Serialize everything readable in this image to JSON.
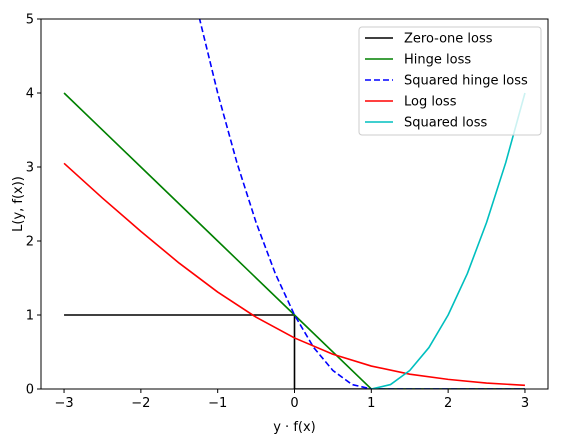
{
  "chart_data": {
    "type": "line",
    "xlabel": "y · f(x)",
    "ylabel": "L(y, f(x))",
    "xlim": [
      -3.3,
      3.3
    ],
    "ylim": [
      0,
      5
    ],
    "xticks": [
      -3,
      -2,
      -1,
      0,
      1,
      2,
      3
    ],
    "yticks": [
      0,
      1,
      2,
      3,
      4,
      5
    ],
    "xtick_labels": [
      "−3",
      "−2",
      "−1",
      "0",
      "1",
      "2",
      "3"
    ],
    "ytick_labels": [
      "0",
      "1",
      "2",
      "3",
      "4",
      "5"
    ],
    "grid": false,
    "legend_position": "top-right",
    "series": [
      {
        "name": "Zero-one loss",
        "color": "#000000",
        "style": "solid",
        "x": [
          -3,
          0,
          0,
          3
        ],
        "y": [
          1,
          1,
          0,
          0
        ]
      },
      {
        "name": "Hinge loss",
        "color": "#008000",
        "style": "solid",
        "x": [
          -3,
          -2,
          -1,
          0,
          1,
          3
        ],
        "y": [
          4,
          3,
          2,
          1,
          0,
          0
        ]
      },
      {
        "name": "Squared hinge loss",
        "color": "#0000ff",
        "style": "dashed",
        "x": [
          -1.24,
          -1,
          -0.75,
          -0.5,
          -0.25,
          0,
          0.25,
          0.5,
          0.75,
          1,
          3
        ],
        "y": [
          5.02,
          4,
          3.06,
          2.25,
          1.56,
          1,
          0.56,
          0.25,
          0.06,
          0,
          0
        ]
      },
      {
        "name": "Log loss",
        "color": "#ff0000",
        "style": "solid",
        "x": [
          -3,
          -2.5,
          -2,
          -1.5,
          -1,
          -0.5,
          0,
          0.5,
          1,
          1.5,
          2,
          2.5,
          3
        ],
        "y": [
          3.05,
          2.58,
          2.13,
          1.7,
          1.31,
          0.97,
          0.69,
          0.47,
          0.31,
          0.2,
          0.13,
          0.08,
          0.05
        ]
      },
      {
        "name": "Squared loss",
        "color": "#00bfbf",
        "style": "solid",
        "x": [
          1,
          1.25,
          1.5,
          1.75,
          2,
          2.25,
          2.5,
          2.75,
          3
        ],
        "y": [
          0,
          0.06,
          0.25,
          0.56,
          1,
          1.56,
          2.25,
          3.06,
          4
        ]
      }
    ]
  }
}
